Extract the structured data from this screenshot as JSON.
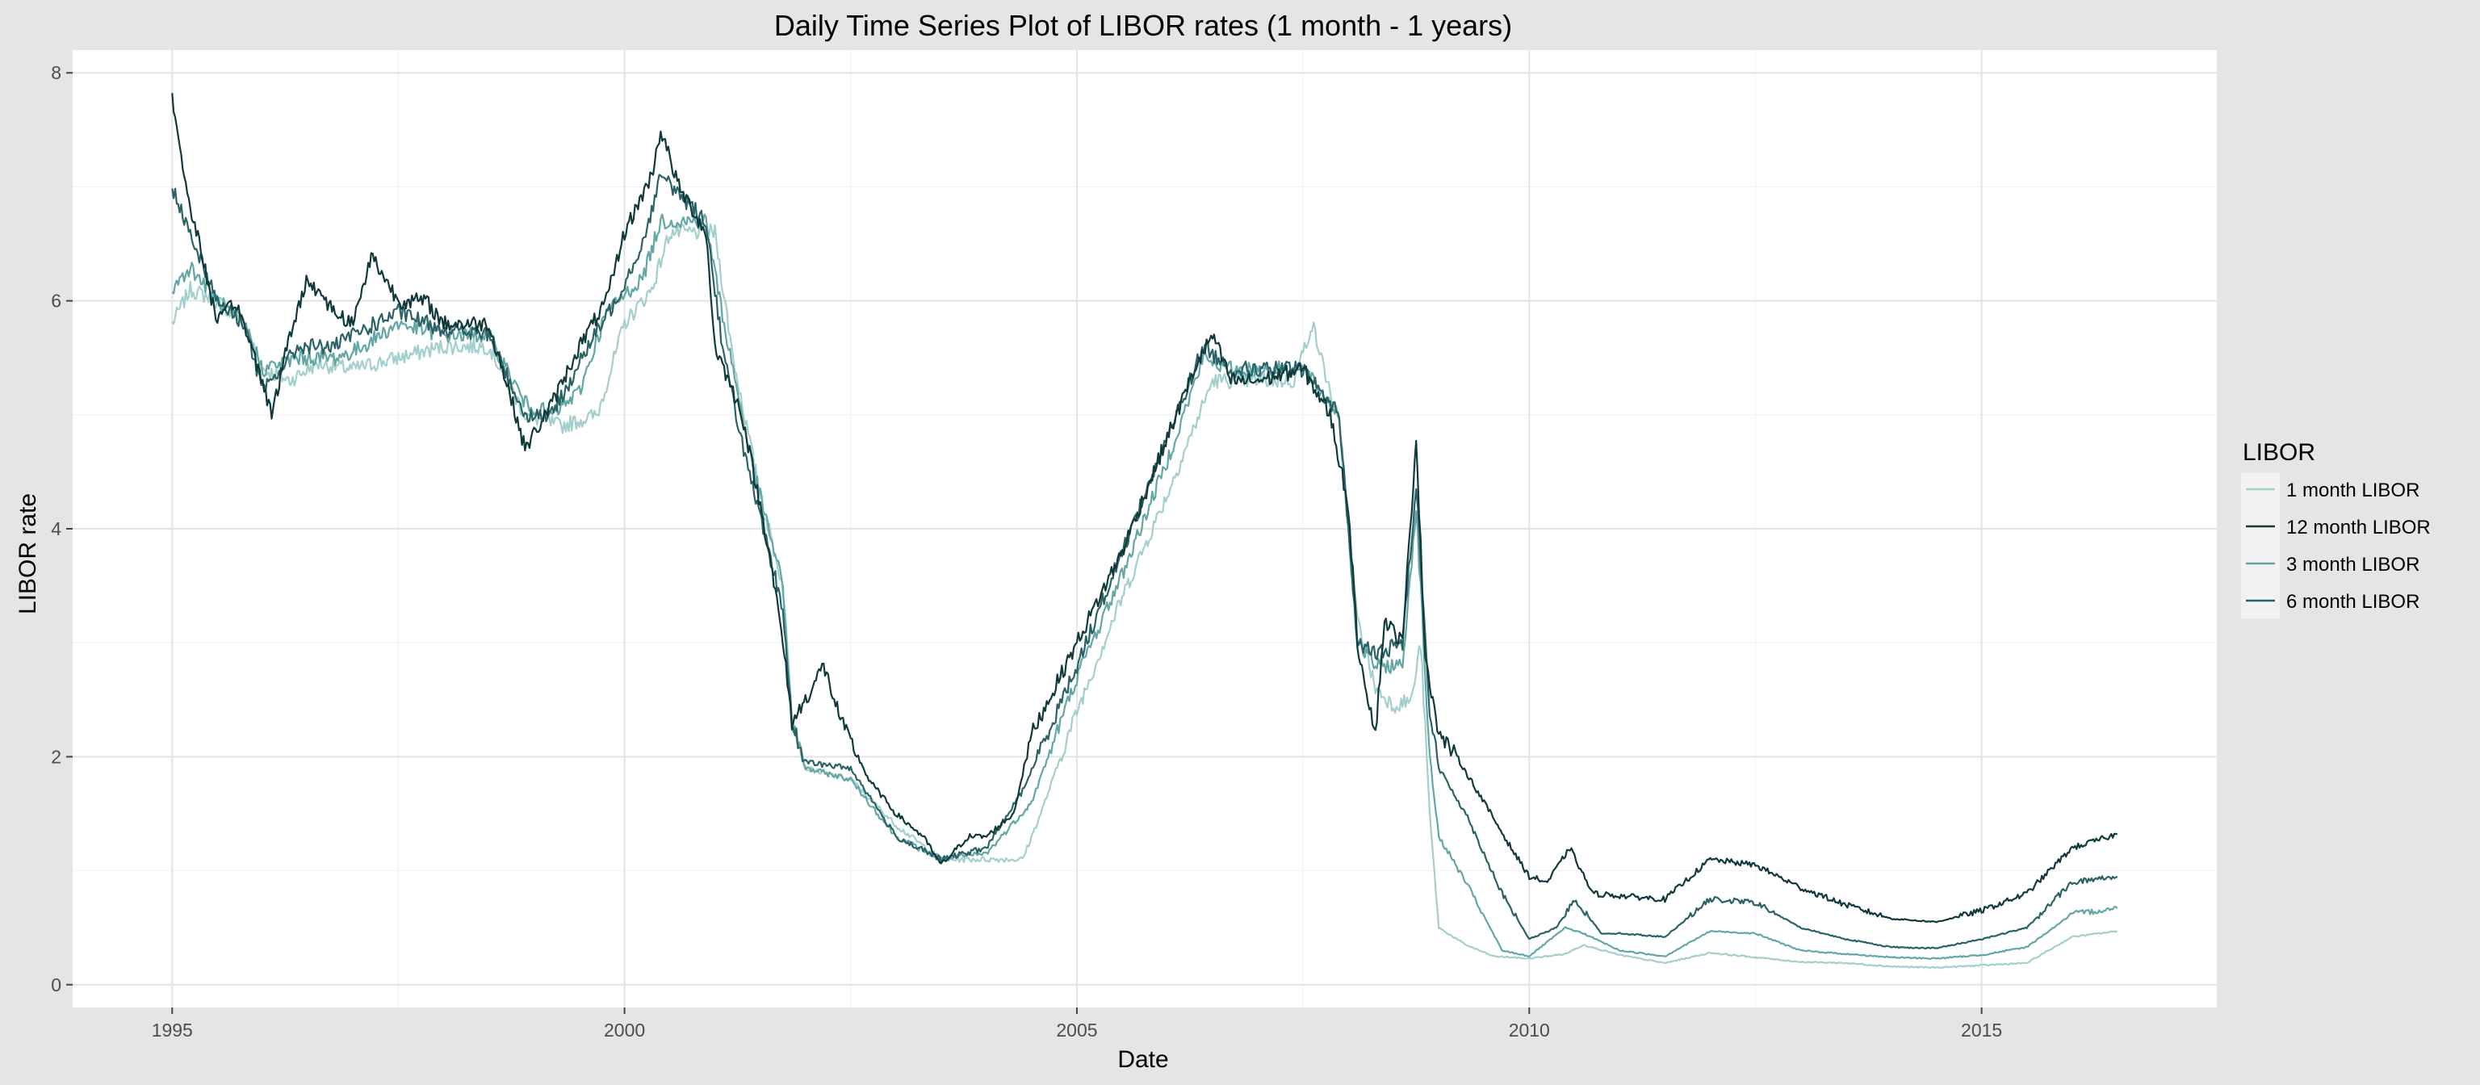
{
  "chart_data": {
    "type": "line",
    "title": "Daily Time Series Plot of LIBOR rates (1 month - 1 years)",
    "xlabel": "Date",
    "ylabel": "LIBOR rate",
    "xlim": [
      1993.9,
      2017.6
    ],
    "ylim": [
      -0.2,
      8.2
    ],
    "x_ticks": [
      1995,
      2000,
      2005,
      2010,
      2015
    ],
    "y_ticks": [
      0,
      2,
      4,
      6,
      8
    ],
    "grid": true,
    "legend": {
      "title": "LIBOR",
      "placement": "right"
    },
    "series": [
      {
        "name": "1 month LIBOR",
        "color": "#a3cfcd",
        "points": [
          [
            1995.0,
            5.8
          ],
          [
            1995.2,
            6.1
          ],
          [
            1995.5,
            6.0
          ],
          [
            1995.8,
            5.8
          ],
          [
            1996.0,
            5.4
          ],
          [
            1996.3,
            5.3
          ],
          [
            1996.6,
            5.45
          ],
          [
            1997.0,
            5.4
          ],
          [
            1997.5,
            5.5
          ],
          [
            1998.0,
            5.6
          ],
          [
            1998.5,
            5.6
          ],
          [
            1998.9,
            5.0
          ],
          [
            1999.3,
            4.9
          ],
          [
            1999.7,
            5.0
          ],
          [
            2000.0,
            5.8
          ],
          [
            2000.3,
            6.1
          ],
          [
            2000.5,
            6.6
          ],
          [
            2001.0,
            6.6
          ],
          [
            2001.2,
            5.5
          ],
          [
            2001.5,
            4.3
          ],
          [
            2001.75,
            3.5
          ],
          [
            2001.85,
            2.4
          ],
          [
            2002.0,
            1.9
          ],
          [
            2002.5,
            1.8
          ],
          [
            2003.0,
            1.4
          ],
          [
            2003.5,
            1.1
          ],
          [
            2004.0,
            1.1
          ],
          [
            2004.4,
            1.1
          ],
          [
            2004.6,
            1.5
          ],
          [
            2005.0,
            2.4
          ],
          [
            2005.5,
            3.4
          ],
          [
            2006.0,
            4.3
          ],
          [
            2006.5,
            5.3
          ],
          [
            2007.0,
            5.3
          ],
          [
            2007.4,
            5.3
          ],
          [
            2007.6,
            5.8
          ],
          [
            2007.9,
            4.9
          ],
          [
            2008.1,
            3.2
          ],
          [
            2008.3,
            2.6
          ],
          [
            2008.5,
            2.45
          ],
          [
            2008.7,
            2.5
          ],
          [
            2008.8,
            3.0
          ],
          [
            2008.9,
            1.5
          ],
          [
            2009.0,
            0.5
          ],
          [
            2009.3,
            0.35
          ],
          [
            2009.6,
            0.25
          ],
          [
            2010.0,
            0.23
          ],
          [
            2010.4,
            0.27
          ],
          [
            2010.6,
            0.35
          ],
          [
            2011.0,
            0.26
          ],
          [
            2011.5,
            0.19
          ],
          [
            2012.0,
            0.28
          ],
          [
            2012.5,
            0.24
          ],
          [
            2013.0,
            0.2
          ],
          [
            2013.5,
            0.19
          ],
          [
            2014.0,
            0.16
          ],
          [
            2014.5,
            0.15
          ],
          [
            2015.0,
            0.17
          ],
          [
            2015.5,
            0.19
          ],
          [
            2016.0,
            0.42
          ],
          [
            2016.5,
            0.47
          ]
        ]
      },
      {
        "name": "12 month LIBOR",
        "color": "#10393b",
        "points": [
          [
            1995.0,
            7.8
          ],
          [
            1995.15,
            7.0
          ],
          [
            1995.3,
            6.5
          ],
          [
            1995.5,
            5.8
          ],
          [
            1995.7,
            6.0
          ],
          [
            1996.0,
            5.3
          ],
          [
            1996.1,
            5.0
          ],
          [
            1996.3,
            5.7
          ],
          [
            1996.5,
            6.2
          ],
          [
            1996.8,
            5.9
          ],
          [
            1997.0,
            5.8
          ],
          [
            1997.2,
            6.4
          ],
          [
            1997.5,
            6.0
          ],
          [
            1997.8,
            6.0
          ],
          [
            1998.0,
            5.8
          ],
          [
            1998.5,
            5.8
          ],
          [
            1998.8,
            5.0
          ],
          [
            1998.9,
            4.7
          ],
          [
            1999.2,
            5.1
          ],
          [
            1999.5,
            5.6
          ],
          [
            1999.8,
            6.0
          ],
          [
            2000.0,
            6.6
          ],
          [
            2000.3,
            7.1
          ],
          [
            2000.4,
            7.5
          ],
          [
            2000.6,
            7.0
          ],
          [
            2000.9,
            6.6
          ],
          [
            2001.0,
            5.6
          ],
          [
            2001.3,
            5.0
          ],
          [
            2001.6,
            3.8
          ],
          [
            2001.75,
            3.0
          ],
          [
            2001.85,
            2.3
          ],
          [
            2002.0,
            2.5
          ],
          [
            2002.2,
            2.8
          ],
          [
            2002.4,
            2.3
          ],
          [
            2002.7,
            1.8
          ],
          [
            2003.0,
            1.5
          ],
          [
            2003.3,
            1.3
          ],
          [
            2003.5,
            1.05
          ],
          [
            2003.8,
            1.3
          ],
          [
            2004.0,
            1.3
          ],
          [
            2004.3,
            1.5
          ],
          [
            2004.5,
            2.2
          ],
          [
            2005.0,
            3.0
          ],
          [
            2005.5,
            3.8
          ],
          [
            2006.0,
            4.8
          ],
          [
            2006.3,
            5.4
          ],
          [
            2006.5,
            5.7
          ],
          [
            2006.7,
            5.3
          ],
          [
            2007.0,
            5.3
          ],
          [
            2007.5,
            5.4
          ],
          [
            2007.8,
            5.0
          ],
          [
            2008.0,
            4.2
          ],
          [
            2008.1,
            3.0
          ],
          [
            2008.2,
            2.6
          ],
          [
            2008.3,
            2.2
          ],
          [
            2008.4,
            3.2
          ],
          [
            2008.6,
            3.0
          ],
          [
            2008.75,
            4.8
          ],
          [
            2008.85,
            2.9
          ],
          [
            2009.0,
            2.2
          ],
          [
            2009.2,
            2.0
          ],
          [
            2009.5,
            1.6
          ],
          [
            2009.8,
            1.2
          ],
          [
            2010.0,
            0.95
          ],
          [
            2010.2,
            0.9
          ],
          [
            2010.45,
            1.2
          ],
          [
            2010.7,
            0.8
          ],
          [
            2011.0,
            0.78
          ],
          [
            2011.5,
            0.75
          ],
          [
            2012.0,
            1.1
          ],
          [
            2012.5,
            1.05
          ],
          [
            2013.0,
            0.85
          ],
          [
            2013.5,
            0.7
          ],
          [
            2014.0,
            0.58
          ],
          [
            2014.5,
            0.55
          ],
          [
            2015.0,
            0.65
          ],
          [
            2015.5,
            0.8
          ],
          [
            2016.0,
            1.2
          ],
          [
            2016.5,
            1.32
          ]
        ]
      },
      {
        "name": "3 month LIBOR",
        "color": "#63a6a6",
        "points": [
          [
            1995.0,
            6.1
          ],
          [
            1995.2,
            6.3
          ],
          [
            1995.5,
            6.0
          ],
          [
            1995.8,
            5.8
          ],
          [
            1996.0,
            5.4
          ],
          [
            1996.4,
            5.5
          ],
          [
            1996.8,
            5.5
          ],
          [
            1997.0,
            5.55
          ],
          [
            1997.5,
            5.8
          ],
          [
            1998.0,
            5.7
          ],
          [
            1998.5,
            5.7
          ],
          [
            1998.9,
            5.1
          ],
          [
            1999.2,
            5.0
          ],
          [
            1999.5,
            5.2
          ],
          [
            1999.8,
            5.9
          ],
          [
            2000.2,
            6.2
          ],
          [
            2000.4,
            6.7
          ],
          [
            2000.9,
            6.7
          ],
          [
            2001.1,
            5.8
          ],
          [
            2001.4,
            4.6
          ],
          [
            2001.75,
            3.5
          ],
          [
            2001.85,
            2.3
          ],
          [
            2002.0,
            1.9
          ],
          [
            2002.5,
            1.8
          ],
          [
            2003.0,
            1.3
          ],
          [
            2003.5,
            1.1
          ],
          [
            2004.0,
            1.15
          ],
          [
            2004.5,
            1.6
          ],
          [
            2005.0,
            2.7
          ],
          [
            2005.5,
            3.6
          ],
          [
            2006.0,
            4.6
          ],
          [
            2006.4,
            5.5
          ],
          [
            2006.7,
            5.4
          ],
          [
            2007.0,
            5.4
          ],
          [
            2007.5,
            5.4
          ],
          [
            2007.9,
            5.0
          ],
          [
            2008.1,
            3.0
          ],
          [
            2008.3,
            2.8
          ],
          [
            2008.6,
            2.8
          ],
          [
            2008.75,
            4.2
          ],
          [
            2008.9,
            2.0
          ],
          [
            2009.0,
            1.3
          ],
          [
            2009.3,
            0.9
          ],
          [
            2009.7,
            0.3
          ],
          [
            2010.0,
            0.25
          ],
          [
            2010.4,
            0.5
          ],
          [
            2010.6,
            0.45
          ],
          [
            2011.0,
            0.3
          ],
          [
            2011.5,
            0.25
          ],
          [
            2012.0,
            0.47
          ],
          [
            2012.5,
            0.45
          ],
          [
            2013.0,
            0.3
          ],
          [
            2013.5,
            0.27
          ],
          [
            2014.0,
            0.24
          ],
          [
            2014.5,
            0.23
          ],
          [
            2015.0,
            0.26
          ],
          [
            2015.5,
            0.33
          ],
          [
            2016.0,
            0.62
          ],
          [
            2016.5,
            0.67
          ]
        ]
      },
      {
        "name": "6 month LIBOR",
        "color": "#2b6266",
        "points": [
          [
            1995.0,
            7.0
          ],
          [
            1995.2,
            6.6
          ],
          [
            1995.5,
            6.0
          ],
          [
            1995.8,
            5.8
          ],
          [
            1996.0,
            5.2
          ],
          [
            1996.4,
            5.6
          ],
          [
            1996.8,
            5.6
          ],
          [
            1997.0,
            5.7
          ],
          [
            1997.5,
            5.9
          ],
          [
            1998.0,
            5.75
          ],
          [
            1998.5,
            5.7
          ],
          [
            1998.9,
            5.0
          ],
          [
            1999.2,
            5.0
          ],
          [
            1999.6,
            5.6
          ],
          [
            1999.9,
            6.0
          ],
          [
            2000.2,
            6.5
          ],
          [
            2000.4,
            7.1
          ],
          [
            2000.9,
            6.7
          ],
          [
            2001.1,
            5.5
          ],
          [
            2001.4,
            4.4
          ],
          [
            2001.75,
            3.3
          ],
          [
            2001.85,
            2.3
          ],
          [
            2002.0,
            1.95
          ],
          [
            2002.5,
            1.9
          ],
          [
            2003.0,
            1.3
          ],
          [
            2003.5,
            1.1
          ],
          [
            2004.0,
            1.2
          ],
          [
            2004.4,
            1.7
          ],
          [
            2005.0,
            2.8
          ],
          [
            2005.5,
            3.8
          ],
          [
            2006.0,
            4.8
          ],
          [
            2006.4,
            5.6
          ],
          [
            2006.7,
            5.4
          ],
          [
            2007.0,
            5.4
          ],
          [
            2007.5,
            5.4
          ],
          [
            2007.9,
            5.0
          ],
          [
            2008.1,
            3.0
          ],
          [
            2008.3,
            2.9
          ],
          [
            2008.6,
            3.0
          ],
          [
            2008.75,
            4.4
          ],
          [
            2008.9,
            2.4
          ],
          [
            2009.0,
            1.9
          ],
          [
            2009.3,
            1.5
          ],
          [
            2009.7,
            0.8
          ],
          [
            2010.0,
            0.4
          ],
          [
            2010.3,
            0.5
          ],
          [
            2010.5,
            0.75
          ],
          [
            2010.8,
            0.45
          ],
          [
            2011.0,
            0.45
          ],
          [
            2011.5,
            0.42
          ],
          [
            2012.0,
            0.75
          ],
          [
            2012.5,
            0.72
          ],
          [
            2013.0,
            0.5
          ],
          [
            2013.5,
            0.4
          ],
          [
            2014.0,
            0.33
          ],
          [
            2014.5,
            0.32
          ],
          [
            2015.0,
            0.4
          ],
          [
            2015.5,
            0.5
          ],
          [
            2016.0,
            0.9
          ],
          [
            2016.5,
            0.95
          ]
        ]
      }
    ]
  }
}
